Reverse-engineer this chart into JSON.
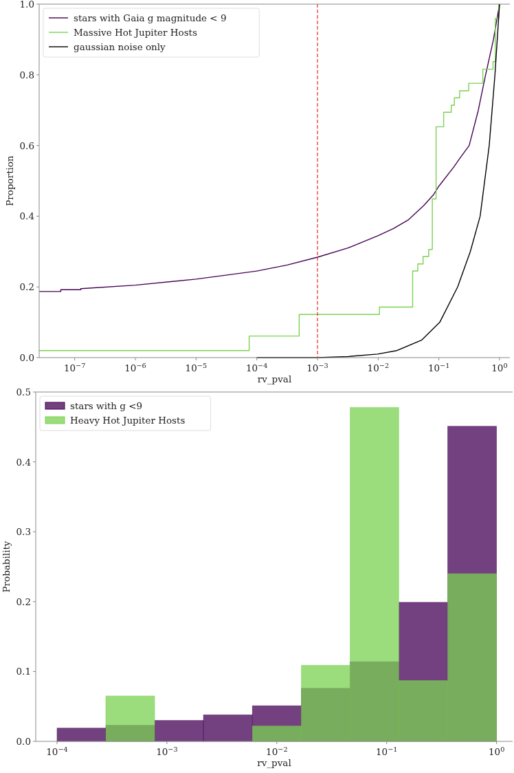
{
  "chart_data": [
    {
      "type": "line",
      "xlabel": "rv_pval",
      "ylabel": "Proportion",
      "log": "x",
      "xlim": [
        2.6e-08,
        1.48
      ],
      "ylim": [
        0,
        1
      ],
      "xticks": [
        {
          "value": 1e-07,
          "label": "10$^{−7}$"
        },
        {
          "value": 1e-06,
          "label": "10$^{−6}$"
        },
        {
          "value": 1e-05,
          "label": "10$^{−5}$"
        },
        {
          "value": 0.0001,
          "label": "10$^{−4}$"
        },
        {
          "value": 0.001,
          "label": "10$^{−3}$"
        },
        {
          "value": 0.01,
          "label": "10$^{−2}$"
        },
        {
          "value": 0.1,
          "label": "10$^{−1}$"
        },
        {
          "value": 1,
          "label": "10$^{0}$"
        }
      ],
      "yticks": [
        {
          "value": 0,
          "label": "0.0"
        },
        {
          "value": 0.2,
          "label": "0.2"
        },
        {
          "value": 0.4,
          "label": "0.4"
        },
        {
          "value": 0.6,
          "label": "0.6"
        },
        {
          "value": 0.8,
          "label": "0.8"
        },
        {
          "value": 1,
          "label": "1.0"
        }
      ],
      "grid": false,
      "legend": "top left",
      "ref_lines": [
        {
          "axis": "x",
          "value": 0.001,
          "color": "#e8282a",
          "line_style": "dashed"
        }
      ],
      "series": [
        {
          "name": "stars with Gaia g magnitude < 9",
          "color": "#440154",
          "x": [
            2.6e-08,
            5.9e-08,
            5.9e-08,
            1.26e-07,
            1.26e-07,
            1e-06,
            1e-05,
            0.0001,
            0.000316,
            0.001,
            0.00316,
            0.01,
            0.0178,
            0.0316,
            0.0562,
            0.081,
            0.1,
            0.178,
            0.224,
            0.316,
            0.447,
            0.589,
            0.794,
            0.891,
            1
          ],
          "values": [
            0.187,
            0.187,
            0.192,
            0.192,
            0.195,
            0.205,
            0.222,
            0.245,
            0.262,
            0.284,
            0.31,
            0.345,
            0.365,
            0.39,
            0.43,
            0.46,
            0.485,
            0.54,
            0.565,
            0.6,
            0.7,
            0.8,
            0.9,
            0.95,
            1
          ]
        },
        {
          "name": "Massive Hot Jupiter Hosts",
          "type": "step",
          "color": "#7ad151",
          "x": [
            2.6e-08,
            7.5e-05,
            0.0005,
            0.0105,
            0.037,
            0.045,
            0.055,
            0.068,
            0.078,
            0.09,
            0.12,
            0.16,
            0.18,
            0.22,
            0.31,
            0.53,
            0.78,
            0.85,
            0.97
          ],
          "values": [
            0.02,
            0.061,
            0.122,
            0.143,
            0.245,
            0.265,
            0.286,
            0.306,
            0.449,
            0.653,
            0.694,
            0.714,
            0.735,
            0.755,
            0.776,
            0.816,
            0.837,
            0.959,
            1
          ]
        },
        {
          "name": "gaussian noise only",
          "color": "#000000",
          "x": [
            0.0001,
            0.001,
            0.00316,
            0.00977,
            0.0204,
            0.0525,
            0.1035,
            0.204,
            0.33,
            0.479,
            0.676,
            0.84,
            1
          ],
          "values": [
            0,
            0,
            0.003,
            0.01,
            0.02,
            0.05,
            0.1,
            0.2,
            0.3,
            0.4,
            0.6,
            0.8,
            1
          ]
        }
      ]
    },
    {
      "type": "histogram",
      "xlabel": "rv_pval",
      "ylabel": "Probability",
      "log": "x",
      "xlim": [
        6.4e-05,
        1.4
      ],
      "ylim": [
        0,
        0.5
      ],
      "xticks": [
        {
          "value": 0.0001,
          "label": "10$^{−4}$"
        },
        {
          "value": 0.001,
          "label": "10$^{−3}$"
        },
        {
          "value": 0.01,
          "label": "10$^{−2}$"
        },
        {
          "value": 0.1,
          "label": "10$^{−1}$"
        },
        {
          "value": 1,
          "label": "10$^{0}$"
        }
      ],
      "yticks": [
        {
          "value": 0,
          "label": "0.0"
        },
        {
          "value": 0.1,
          "label": "0.1"
        },
        {
          "value": 0.2,
          "label": "0.2"
        },
        {
          "value": 0.3,
          "label": "0.3"
        },
        {
          "value": 0.4,
          "label": "0.4"
        },
        {
          "value": 0.5,
          "label": "0.5"
        }
      ],
      "grid": false,
      "legend": "top left",
      "bins": [
        0.0001,
        0.000278,
        0.000774,
        0.00215,
        0.00599,
        0.0167,
        0.0464,
        0.129,
        0.359,
        1
      ],
      "series": [
        {
          "name": "stars with g <9",
          "color": "#440154",
          "values": [
            0.019,
            0.023,
            0.03,
            0.038,
            0.051,
            0.076,
            0.114,
            0.199,
            0.451
          ]
        },
        {
          "name": "Heavy Hot Jupiter Hosts",
          "color": "#7ad151",
          "values": [
            0,
            0.065,
            0,
            0,
            0.022,
            0.109,
            0.478,
            0.087,
            0.24
          ]
        }
      ]
    }
  ]
}
